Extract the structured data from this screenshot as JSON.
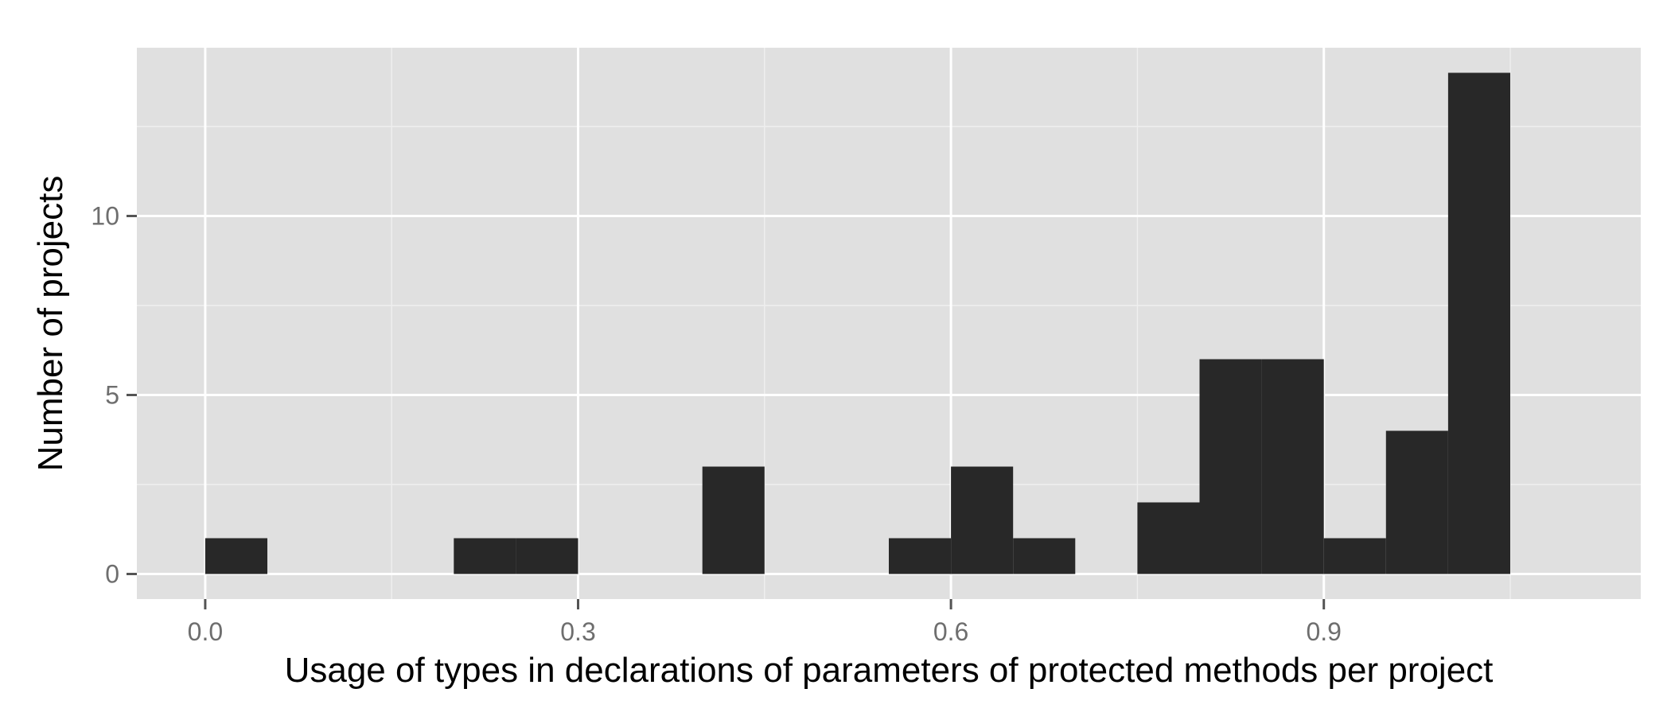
{
  "chart_data": {
    "type": "bar",
    "subtype": "histogram",
    "title": "",
    "xlabel": "Usage of types in declarations of parameters of protected methods per project",
    "ylabel": "Number of projects",
    "bin_width": 0.05,
    "bins": [
      {
        "x_start": 0.0,
        "x_end": 0.05,
        "count": 1
      },
      {
        "x_start": 0.05,
        "x_end": 0.1,
        "count": 0
      },
      {
        "x_start": 0.1,
        "x_end": 0.15,
        "count": 0
      },
      {
        "x_start": 0.15,
        "x_end": 0.2,
        "count": 0
      },
      {
        "x_start": 0.2,
        "x_end": 0.25,
        "count": 1
      },
      {
        "x_start": 0.25,
        "x_end": 0.3,
        "count": 1
      },
      {
        "x_start": 0.3,
        "x_end": 0.35,
        "count": 0
      },
      {
        "x_start": 0.35,
        "x_end": 0.4,
        "count": 0
      },
      {
        "x_start": 0.4,
        "x_end": 0.45,
        "count": 3
      },
      {
        "x_start": 0.45,
        "x_end": 0.5,
        "count": 0
      },
      {
        "x_start": 0.5,
        "x_end": 0.55,
        "count": 0
      },
      {
        "x_start": 0.55,
        "x_end": 0.6,
        "count": 1
      },
      {
        "x_start": 0.6,
        "x_end": 0.65,
        "count": 3
      },
      {
        "x_start": 0.65,
        "x_end": 0.7,
        "count": 1
      },
      {
        "x_start": 0.7,
        "x_end": 0.75,
        "count": 0
      },
      {
        "x_start": 0.75,
        "x_end": 0.8,
        "count": 2
      },
      {
        "x_start": 0.8,
        "x_end": 0.85,
        "count": 6
      },
      {
        "x_start": 0.85,
        "x_end": 0.9,
        "count": 6
      },
      {
        "x_start": 0.9,
        "x_end": 0.95,
        "count": 1
      },
      {
        "x_start": 0.95,
        "x_end": 1.0,
        "count": 4
      },
      {
        "x_start": 1.0,
        "x_end": 1.05,
        "count": 14
      }
    ],
    "xlim": [
      -0.055,
      1.155
    ],
    "ylim": [
      -0.7,
      14.7
    ],
    "x_ticks": [
      {
        "value": 0.0,
        "label": "0.0"
      },
      {
        "value": 0.3,
        "label": "0.3"
      },
      {
        "value": 0.6,
        "label": "0.6"
      },
      {
        "value": 0.9,
        "label": "0.9"
      }
    ],
    "x_minor_ticks": [
      0.15,
      0.45,
      0.75,
      1.05
    ],
    "y_ticks": [
      {
        "value": 0,
        "label": "0"
      },
      {
        "value": 5,
        "label": "5"
      },
      {
        "value": 10,
        "label": "10"
      }
    ],
    "y_minor_ticks": [
      2.5,
      7.5,
      12.5
    ],
    "grid": true,
    "legend": "none",
    "colors": {
      "panel_background": "#e0e0e0",
      "major_grid": "#ffffff",
      "minor_grid": "#efefef",
      "bar_fill": "#282828",
      "tick_mark": "#545454"
    }
  }
}
